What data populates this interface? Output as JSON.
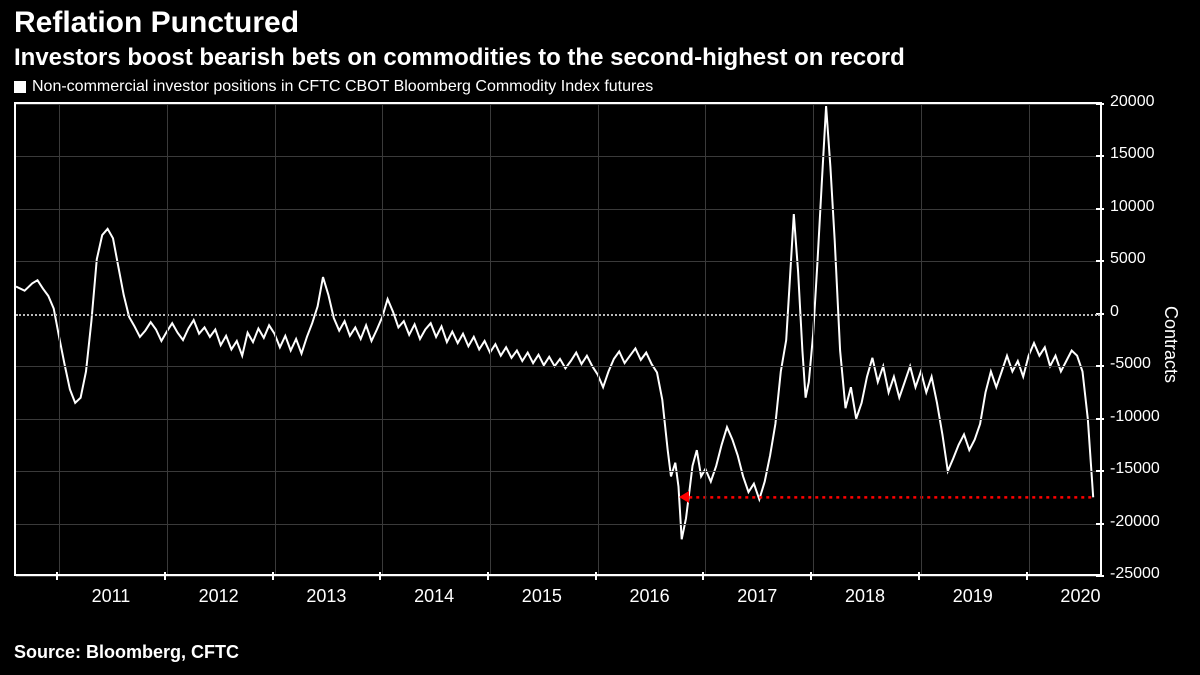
{
  "title": "Reflation Punctured",
  "subtitle": "Investors boost bearish bets on commodities to the second-highest on record",
  "legend_label": "Non-commercial investor positions in CFTC CBOT Bloomberg Commodity Index futures",
  "source": "Source: Bloomberg, CFTC",
  "y_axis": {
    "title": "Contracts",
    "min": -25000,
    "max": 20000,
    "ticks": [
      20000,
      15000,
      10000,
      5000,
      0,
      -5000,
      -10000,
      -15000,
      -20000,
      -25000
    ],
    "zero": 0
  },
  "x_axis": {
    "min": 2010.6,
    "max": 2020.7,
    "year_ticks": [
      2011,
      2012,
      2013,
      2014,
      2015,
      2016,
      2017,
      2018,
      2019,
      2020
    ],
    "labels": [
      "2011",
      "2012",
      "2013",
      "2014",
      "2015",
      "2016",
      "2017",
      "2018",
      "2019",
      "2020"
    ]
  },
  "colors": {
    "background": "#000000",
    "text": "#ffffff",
    "line": "#ffffff",
    "grid": "#3a3a3a",
    "zero_line": "#bbbbbb",
    "reference_line": "#ff0000"
  },
  "reference_line": {
    "y": -17500,
    "x_start": 2016.85,
    "x_end": 2020.6
  },
  "series": [
    [
      2010.6,
      2600
    ],
    [
      2010.68,
      2200
    ],
    [
      2010.75,
      2900
    ],
    [
      2010.8,
      3200
    ],
    [
      2010.85,
      2400
    ],
    [
      2010.9,
      1700
    ],
    [
      2010.95,
      500
    ],
    [
      2011.0,
      -2200
    ],
    [
      2011.05,
      -4800
    ],
    [
      2011.1,
      -7200
    ],
    [
      2011.15,
      -8500
    ],
    [
      2011.2,
      -8000
    ],
    [
      2011.25,
      -5500
    ],
    [
      2011.3,
      -700
    ],
    [
      2011.35,
      5200
    ],
    [
      2011.4,
      7500
    ],
    [
      2011.45,
      8100
    ],
    [
      2011.5,
      7200
    ],
    [
      2011.55,
      4500
    ],
    [
      2011.6,
      1800
    ],
    [
      2011.65,
      -300
    ],
    [
      2011.7,
      -1200
    ],
    [
      2011.75,
      -2200
    ],
    [
      2011.8,
      -1600
    ],
    [
      2011.85,
      -800
    ],
    [
      2011.9,
      -1500
    ],
    [
      2011.95,
      -2600
    ],
    [
      2012.0,
      -1700
    ],
    [
      2012.05,
      -900
    ],
    [
      2012.1,
      -1800
    ],
    [
      2012.15,
      -2500
    ],
    [
      2012.2,
      -1400
    ],
    [
      2012.25,
      -600
    ],
    [
      2012.3,
      -1900
    ],
    [
      2012.35,
      -1300
    ],
    [
      2012.4,
      -2200
    ],
    [
      2012.45,
      -1500
    ],
    [
      2012.5,
      -3000
    ],
    [
      2012.55,
      -2100
    ],
    [
      2012.6,
      -3400
    ],
    [
      2012.65,
      -2600
    ],
    [
      2012.7,
      -4000
    ],
    [
      2012.75,
      -1800
    ],
    [
      2012.8,
      -2700
    ],
    [
      2012.85,
      -1400
    ],
    [
      2012.9,
      -2300
    ],
    [
      2012.95,
      -1100
    ],
    [
      2013.0,
      -1900
    ],
    [
      2013.05,
      -3200
    ],
    [
      2013.1,
      -2100
    ],
    [
      2013.15,
      -3500
    ],
    [
      2013.2,
      -2400
    ],
    [
      2013.25,
      -3800
    ],
    [
      2013.3,
      -2200
    ],
    [
      2013.35,
      -900
    ],
    [
      2013.4,
      700
    ],
    [
      2013.45,
      3500
    ],
    [
      2013.5,
      1800
    ],
    [
      2013.55,
      -400
    ],
    [
      2013.6,
      -1600
    ],
    [
      2013.65,
      -700
    ],
    [
      2013.7,
      -2100
    ],
    [
      2013.75,
      -1300
    ],
    [
      2013.8,
      -2400
    ],
    [
      2013.85,
      -1100
    ],
    [
      2013.9,
      -2600
    ],
    [
      2013.95,
      -1500
    ],
    [
      2014.0,
      -300
    ],
    [
      2014.05,
      1400
    ],
    [
      2014.1,
      200
    ],
    [
      2014.15,
      -1300
    ],
    [
      2014.2,
      -700
    ],
    [
      2014.25,
      -2000
    ],
    [
      2014.3,
      -1000
    ],
    [
      2014.35,
      -2400
    ],
    [
      2014.4,
      -1500
    ],
    [
      2014.45,
      -900
    ],
    [
      2014.5,
      -2200
    ],
    [
      2014.55,
      -1200
    ],
    [
      2014.6,
      -2700
    ],
    [
      2014.65,
      -1700
    ],
    [
      2014.7,
      -2800
    ],
    [
      2014.75,
      -1900
    ],
    [
      2014.8,
      -3100
    ],
    [
      2014.85,
      -2200
    ],
    [
      2014.9,
      -3400
    ],
    [
      2014.95,
      -2600
    ],
    [
      2015.0,
      -3700
    ],
    [
      2015.05,
      -2900
    ],
    [
      2015.1,
      -4000
    ],
    [
      2015.15,
      -3200
    ],
    [
      2015.2,
      -4200
    ],
    [
      2015.25,
      -3500
    ],
    [
      2015.3,
      -4500
    ],
    [
      2015.35,
      -3700
    ],
    [
      2015.4,
      -4700
    ],
    [
      2015.45,
      -3900
    ],
    [
      2015.5,
      -4900
    ],
    [
      2015.55,
      -4100
    ],
    [
      2015.6,
      -5000
    ],
    [
      2015.65,
      -4300
    ],
    [
      2015.7,
      -5200
    ],
    [
      2015.75,
      -4500
    ],
    [
      2015.8,
      -3700
    ],
    [
      2015.85,
      -4800
    ],
    [
      2015.9,
      -4000
    ],
    [
      2015.95,
      -5000
    ],
    [
      2016.0,
      -5800
    ],
    [
      2016.05,
      -7000
    ],
    [
      2016.1,
      -5500
    ],
    [
      2016.15,
      -4300
    ],
    [
      2016.2,
      -3600
    ],
    [
      2016.25,
      -4700
    ],
    [
      2016.3,
      -4000
    ],
    [
      2016.35,
      -3300
    ],
    [
      2016.4,
      -4400
    ],
    [
      2016.45,
      -3700
    ],
    [
      2016.5,
      -4800
    ],
    [
      2016.55,
      -5600
    ],
    [
      2016.6,
      -8200
    ],
    [
      2016.65,
      -13000
    ],
    [
      2016.68,
      -15500
    ],
    [
      2016.72,
      -14200
    ],
    [
      2016.75,
      -16500
    ],
    [
      2016.78,
      -21500
    ],
    [
      2016.82,
      -19500
    ],
    [
      2016.85,
      -17000
    ],
    [
      2016.88,
      -14500
    ],
    [
      2016.92,
      -13000
    ],
    [
      2016.96,
      -15500
    ],
    [
      2017.0,
      -14800
    ],
    [
      2017.05,
      -16000
    ],
    [
      2017.1,
      -14500
    ],
    [
      2017.15,
      -12500
    ],
    [
      2017.2,
      -10800
    ],
    [
      2017.25,
      -12000
    ],
    [
      2017.3,
      -13500
    ],
    [
      2017.35,
      -15500
    ],
    [
      2017.4,
      -17000
    ],
    [
      2017.45,
      -16200
    ],
    [
      2017.5,
      -17700
    ],
    [
      2017.55,
      -16000
    ],
    [
      2017.6,
      -13500
    ],
    [
      2017.65,
      -10500
    ],
    [
      2017.7,
      -5500
    ],
    [
      2017.75,
      -2500
    ],
    [
      2017.78,
      2500
    ],
    [
      2017.82,
      9500
    ],
    [
      2017.86,
      4000
    ],
    [
      2017.9,
      -3500
    ],
    [
      2017.93,
      -8000
    ],
    [
      2017.96,
      -6500
    ],
    [
      2018.0,
      -2000
    ],
    [
      2018.04,
      5000
    ],
    [
      2018.08,
      12500
    ],
    [
      2018.12,
      19800
    ],
    [
      2018.16,
      14000
    ],
    [
      2018.2,
      7000
    ],
    [
      2018.25,
      -3500
    ],
    [
      2018.3,
      -9000
    ],
    [
      2018.35,
      -7000
    ],
    [
      2018.4,
      -10000
    ],
    [
      2018.45,
      -8500
    ],
    [
      2018.5,
      -6000
    ],
    [
      2018.55,
      -4200
    ],
    [
      2018.6,
      -6500
    ],
    [
      2018.65,
      -5000
    ],
    [
      2018.7,
      -7500
    ],
    [
      2018.75,
      -6000
    ],
    [
      2018.8,
      -8000
    ],
    [
      2018.85,
      -6500
    ],
    [
      2018.9,
      -5000
    ],
    [
      2018.95,
      -7000
    ],
    [
      2019.0,
      -5500
    ],
    [
      2019.05,
      -7500
    ],
    [
      2019.1,
      -6000
    ],
    [
      2019.15,
      -8500
    ],
    [
      2019.2,
      -11500
    ],
    [
      2019.25,
      -15000
    ],
    [
      2019.3,
      -13800
    ],
    [
      2019.35,
      -12500
    ],
    [
      2019.4,
      -11500
    ],
    [
      2019.45,
      -13000
    ],
    [
      2019.5,
      -12000
    ],
    [
      2019.55,
      -10500
    ],
    [
      2019.6,
      -7500
    ],
    [
      2019.65,
      -5500
    ],
    [
      2019.7,
      -7000
    ],
    [
      2019.75,
      -5500
    ],
    [
      2019.8,
      -4000
    ],
    [
      2019.85,
      -5500
    ],
    [
      2019.9,
      -4500
    ],
    [
      2019.95,
      -6000
    ],
    [
      2020.0,
      -4000
    ],
    [
      2020.05,
      -2800
    ],
    [
      2020.1,
      -4000
    ],
    [
      2020.15,
      -3200
    ],
    [
      2020.2,
      -5000
    ],
    [
      2020.25,
      -4000
    ],
    [
      2020.3,
      -5500
    ],
    [
      2020.35,
      -4500
    ],
    [
      2020.4,
      -3500
    ],
    [
      2020.45,
      -4000
    ],
    [
      2020.5,
      -5500
    ],
    [
      2020.55,
      -10000
    ],
    [
      2020.6,
      -17500
    ]
  ]
}
